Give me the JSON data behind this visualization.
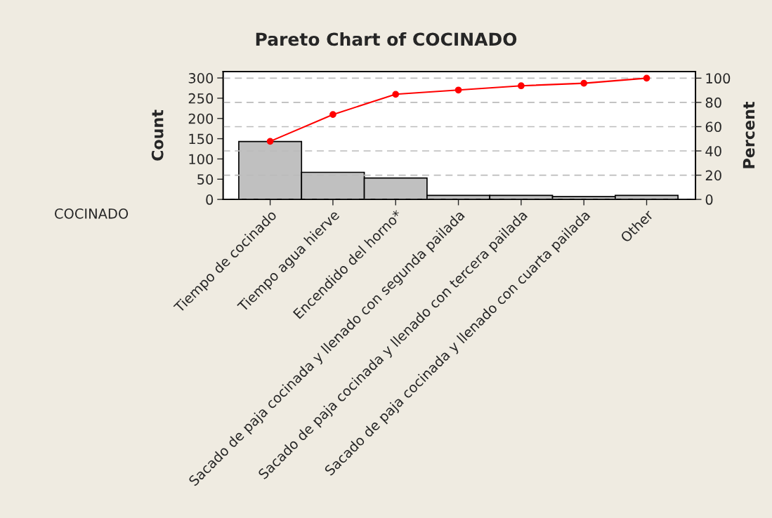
{
  "chart_data": {
    "type": "bar",
    "title": "Pareto Chart of COCINADO",
    "ylabel": "Count",
    "y2label": "Percent",
    "categories": [
      "Tiempo de cocinado",
      "Tiempo agua hierve",
      "Encendido del horno*",
      "Sacado de paja cocinada y llenado con segunda pailada",
      "Sacado de paja cocinada y llenado con tercera pailada",
      "Sacado de paja cocinada y llenado con cuarta pailada",
      "Other"
    ],
    "series": [
      {
        "color": "#c0c0c0",
        "values": [
          143,
          67,
          53,
          10,
          10,
          7,
          10
        ]
      },
      {
        "type": "line",
        "axis": "y2",
        "color": "#ff0000",
        "values": [
          47.9,
          70,
          86.7,
          90.2,
          93.7,
          95.8,
          100
        ]
      }
    ],
    "ylim": [
      0,
      316
    ],
    "yticks": [
      0,
      50,
      100,
      150,
      200,
      250,
      300
    ],
    "y2lim": [
      0,
      105.5
    ],
    "y2ticks": [
      0,
      20,
      40,
      60,
      80,
      100
    ],
    "grid": "y2",
    "marker": "circle",
    "line_style": "solid",
    "legend": false,
    "annotations": [
      "COCINADO"
    ]
  }
}
